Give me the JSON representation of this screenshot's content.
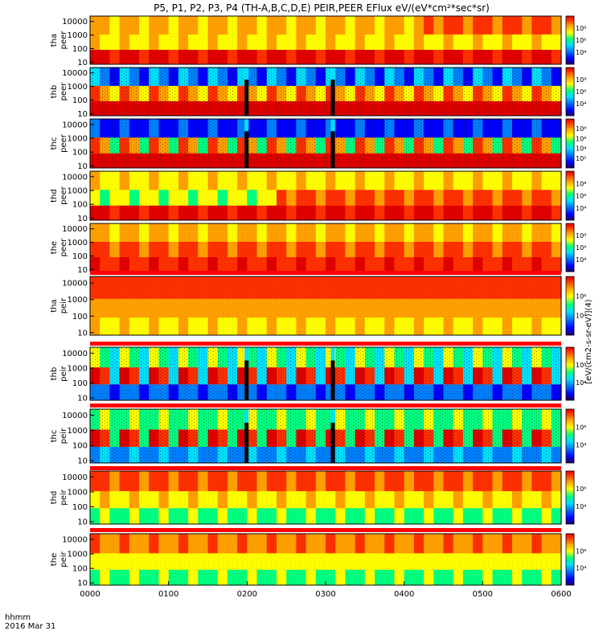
{
  "title": "P5, P1, P2, P3, P4 (TH-A,B,C,D,E) PEIR,PEER EFlux eV/(eV*cm²*sec*sr)",
  "colorbar_title": "[eV/(cm2-s-sr-eV)](4)",
  "time_axis": {
    "label_line1": "hhmm",
    "label_line2": "2016 Mar 31",
    "ticks": [
      "0000",
      "0100",
      "0200",
      "0300",
      "0400",
      "0500",
      "0600"
    ]
  },
  "colors": {
    "scale": [
      "#1e0064",
      "#0000ff",
      "#0080ff",
      "#00e0ff",
      "#00ff80",
      "#ffff00",
      "#ffa000",
      "#ff3000",
      "#e00000"
    ],
    "overlay_line": "#000000",
    "flag_bar": "#ff0000"
  },
  "chart_data": {
    "type": "heatmap",
    "x_range": [
      "0000",
      "0600"
    ],
    "x_units": "hhmm",
    "y_scale": "log",
    "y_ticks": [
      "10",
      "100",
      "1000",
      "10000"
    ],
    "y_range_eV": [
      7,
      25000
    ],
    "panels": [
      {
        "probe": "tha",
        "species": "peer",
        "line1": "tha",
        "line2": "peer",
        "colorbar_ticks": [
          "10⁴",
          "10⁶",
          "10⁸"
        ],
        "description": "electron energy flux; high flux below ~1 keV, enhancement above 1 keV after 0420",
        "gaps": []
      },
      {
        "probe": "thb",
        "species": "peer",
        "line1": "thb",
        "line2": "peer",
        "colorbar_ticks": [
          "10⁴",
          "10⁶",
          "10⁸"
        ],
        "gaps": [
          0.328,
          0.511
        ]
      },
      {
        "probe": "thc",
        "species": "peer",
        "line1": "thc",
        "line2": "peer",
        "colorbar_ticks": [
          "10²",
          "10⁴",
          "10⁶",
          "10⁸"
        ],
        "gaps": [
          0.328,
          0.511
        ]
      },
      {
        "probe": "thd",
        "species": "peer",
        "line1": "thd",
        "line2": "peer",
        "colorbar_ticks": [
          "10⁴",
          "10⁶",
          "10⁸"
        ],
        "gaps": []
      },
      {
        "probe": "the",
        "species": "peer",
        "line1": "the",
        "line2": "peer",
        "colorbar_ticks": [
          "10⁴",
          "10⁶",
          "10⁸"
        ],
        "gaps": []
      },
      {
        "probe": "tha",
        "species": "peir",
        "line1": "tha",
        "line2": "peir",
        "colorbar_ticks": [
          "10⁴",
          "10⁶"
        ],
        "gaps": []
      },
      {
        "probe": "thb",
        "species": "peir",
        "line1": "thb",
        "line2": "peir",
        "colorbar_ticks": [
          "10⁴",
          "10⁶"
        ],
        "gaps": [
          0.328,
          0.511
        ]
      },
      {
        "probe": "thc",
        "species": "peir",
        "line1": "thc",
        "line2": "peir",
        "colorbar_ticks": [
          "10⁴",
          "10⁶"
        ],
        "gaps": [
          0.328,
          0.511
        ]
      },
      {
        "probe": "thd",
        "species": "peir",
        "line1": "thd",
        "line2": "peir",
        "colorbar_ticks": [
          "10⁴",
          "10⁶"
        ],
        "gaps": []
      },
      {
        "probe": "the",
        "species": "peir",
        "line1": "the",
        "line2": "peir",
        "colorbar_ticks": [
          "10⁴",
          "10⁶"
        ],
        "gaps": []
      }
    ]
  }
}
